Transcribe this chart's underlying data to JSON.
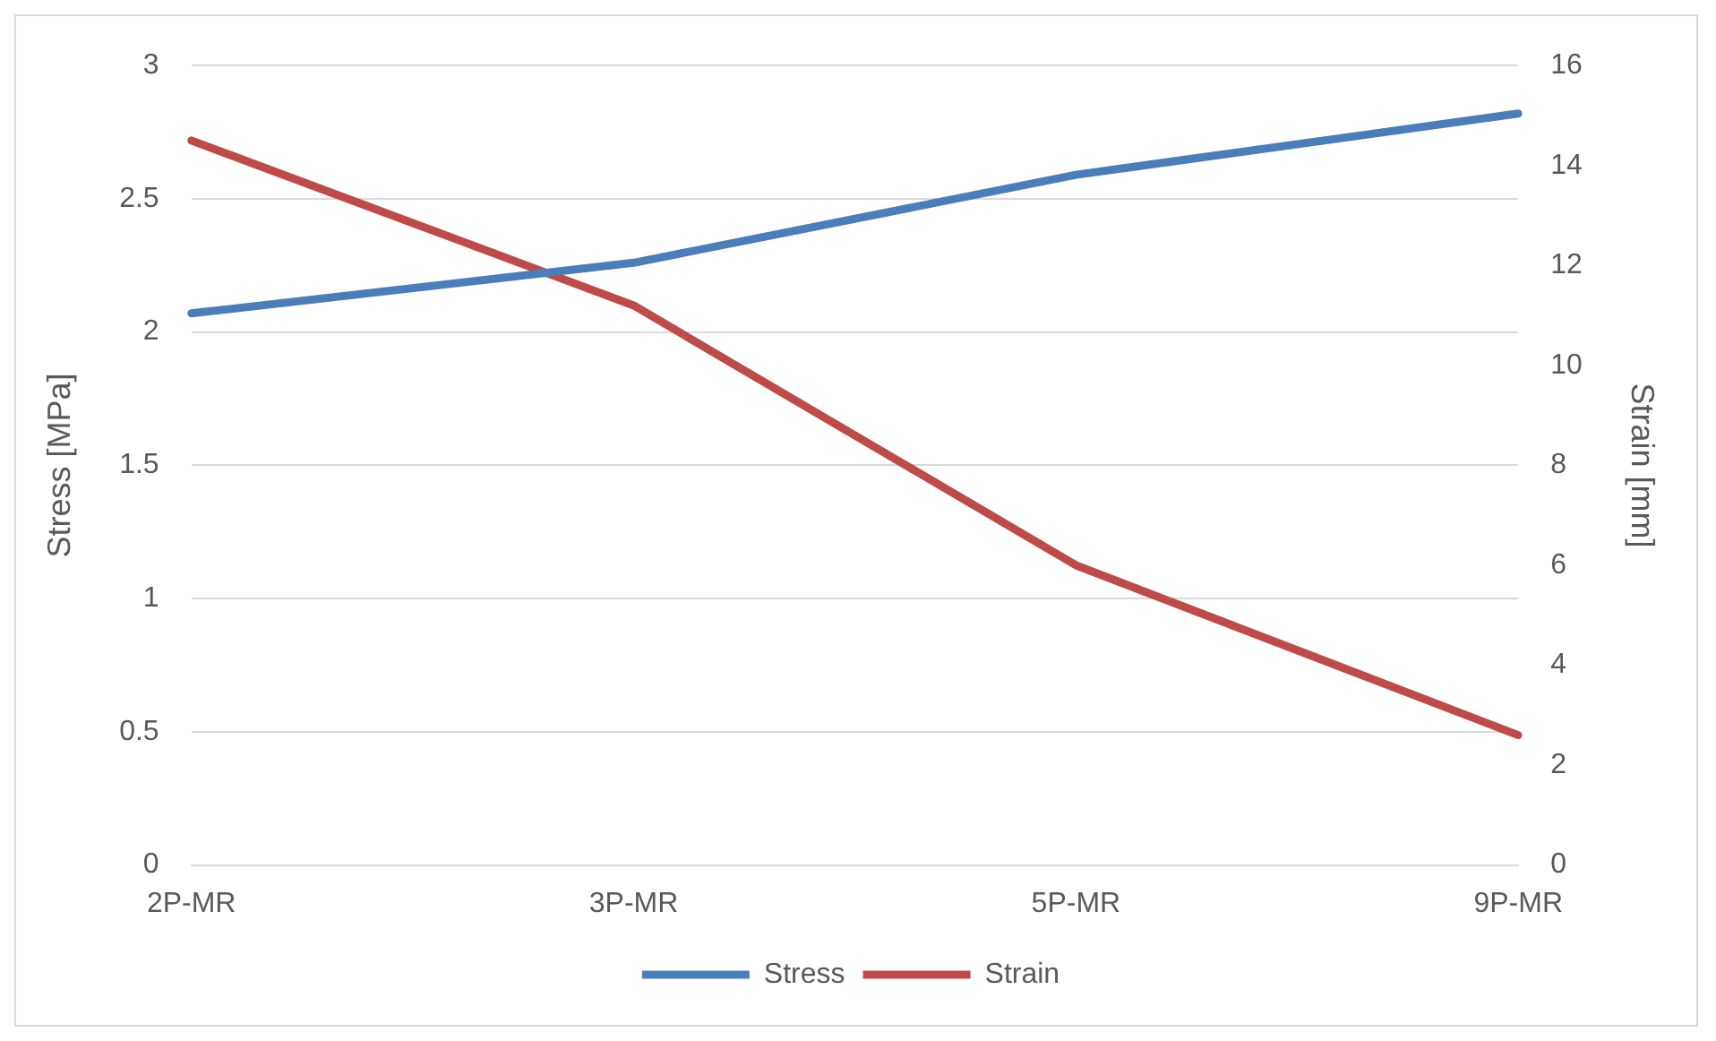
{
  "chart_data": {
    "type": "line",
    "categories": [
      "2P-MR",
      "3P-MR",
      "5P-MR",
      "9P-MR"
    ],
    "ylabel": "Stress [MPa]",
    "y2label": "Strain [mm]",
    "series": [
      {
        "name": "Stress",
        "color": "#4a7ebb",
        "values": [
          2.07,
          2.26,
          2.59,
          2.82
        ]
      },
      {
        "name": "Strain",
        "color": "#be4b48",
        "values": [
          14.5,
          11.2,
          6.0,
          2.6
        ],
        "axis": "y2"
      }
    ],
    "ylim": [
      0,
      3
    ],
    "yticks": [
      0,
      0.5,
      1,
      1.5,
      2,
      2.5,
      3
    ],
    "y2lim": [
      0,
      16
    ],
    "y2ticks": [
      0,
      2,
      4,
      6,
      8,
      10,
      12,
      14,
      16
    ],
    "grid": "y",
    "legend": "bottom",
    "marker": "none",
    "line_style": "solid"
  }
}
